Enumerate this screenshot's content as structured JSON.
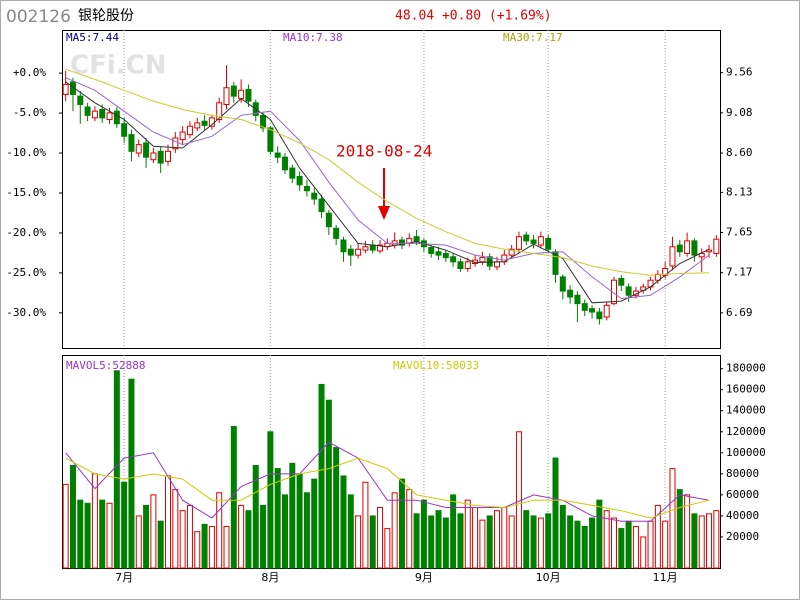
{
  "chart_data": [
    {
      "type": "candlestick",
      "code": "002126",
      "title": "银轮股份",
      "quote": "48.04 +0.80 (+1.69%)",
      "watermark": "CFi.CN",
      "annotation": "2018-08-24",
      "up_color": "#e00000",
      "down_color": "#008000",
      "xlim": [
        -0.5,
        89.5
      ],
      "ylim": [
        6.27,
        10.07
      ],
      "yticks": [
        9.56,
        9.08,
        {
          "value": 8.6,
          "label": "8.60"
        },
        8.13,
        7.65,
        7.17,
        6.69
      ],
      "y2lim": [
        -34.4,
        5.4
      ],
      "y2ticks": [
        {
          "value": 0,
          "label": "+0.0%"
        },
        {
          "value": -5,
          "label": "-5.0%"
        },
        {
          "value": -10,
          "label": "-10.0%"
        },
        {
          "value": -15,
          "label": "-15.0%"
        },
        {
          "value": -20,
          "label": "-20.0%"
        },
        {
          "value": -25,
          "label": "-25.0%"
        },
        {
          "value": -30,
          "label": "-30.0%"
        }
      ],
      "open": [
        9.3,
        9.45,
        9.28,
        9.15,
        9.02,
        9.12,
        9.0,
        9.1,
        8.95,
        8.82,
        8.6,
        8.72,
        8.52,
        8.62,
        8.5,
        8.65,
        8.76,
        8.82,
        8.9,
        8.98,
        8.92,
        9.0,
        9.18,
        9.4,
        9.25,
        9.36,
        9.2,
        9.05,
        8.9,
        8.6,
        8.55,
        8.42,
        8.32,
        8.2,
        8.12,
        8.05,
        7.88,
        7.7,
        7.56,
        7.45,
        7.38,
        7.44,
        7.5,
        7.43,
        7.48,
        7.5,
        7.56,
        7.52,
        7.6,
        7.55,
        7.47,
        7.42,
        7.4,
        7.36,
        7.3,
        7.22,
        7.28,
        7.3,
        7.36,
        7.24,
        7.3,
        7.38,
        7.45,
        7.62,
        7.56,
        7.5,
        7.58,
        7.42,
        7.12,
        6.96,
        6.9,
        6.8,
        6.74,
        6.7,
        6.64,
        6.8,
        7.1,
        7.0,
        6.9,
        6.96,
        7.0,
        7.08,
        7.14,
        7.25,
        7.5,
        7.4,
        7.55,
        7.36,
        7.42,
        7.4
      ],
      "high": [
        9.58,
        9.5,
        9.34,
        9.2,
        9.16,
        9.18,
        9.14,
        9.15,
        9.02,
        8.88,
        8.76,
        8.78,
        8.66,
        8.68,
        8.7,
        8.85,
        8.92,
        8.98,
        9.02,
        9.05,
        9.06,
        9.26,
        9.65,
        9.45,
        9.48,
        9.42,
        9.24,
        9.08,
        8.92,
        8.68,
        8.6,
        8.46,
        8.38,
        8.28,
        8.18,
        8.1,
        7.92,
        7.74,
        7.6,
        7.5,
        7.52,
        7.55,
        7.56,
        7.56,
        7.58,
        7.65,
        7.6,
        7.64,
        7.68,
        7.58,
        7.5,
        7.48,
        7.44,
        7.4,
        7.34,
        7.35,
        7.38,
        7.42,
        7.4,
        7.36,
        7.44,
        7.5,
        7.66,
        7.66,
        7.62,
        7.66,
        7.62,
        7.45,
        7.15,
        7.02,
        6.95,
        6.85,
        6.78,
        6.75,
        6.82,
        7.12,
        7.14,
        7.04,
        7.0,
        7.04,
        7.12,
        7.2,
        7.3,
        7.6,
        7.56,
        7.65,
        7.58,
        7.46,
        7.5,
        7.62
      ],
      "low": [
        9.22,
        9.1,
        8.95,
        8.98,
        8.98,
        8.96,
        8.95,
        8.9,
        8.72,
        8.5,
        8.55,
        8.42,
        8.48,
        8.36,
        8.45,
        8.6,
        8.7,
        8.78,
        8.86,
        8.88,
        8.88,
        8.96,
        9.12,
        9.2,
        9.2,
        9.15,
        8.98,
        8.85,
        8.58,
        8.48,
        8.35,
        8.24,
        8.15,
        8.08,
        7.98,
        7.82,
        7.62,
        7.5,
        7.3,
        7.25,
        7.34,
        7.4,
        7.4,
        7.4,
        7.44,
        7.46,
        7.45,
        7.48,
        7.5,
        7.42,
        7.35,
        7.32,
        7.3,
        7.24,
        7.18,
        7.18,
        7.24,
        7.26,
        7.2,
        7.2,
        7.26,
        7.34,
        7.4,
        7.5,
        7.46,
        7.46,
        7.4,
        7.05,
        6.85,
        6.8,
        6.58,
        6.65,
        6.62,
        6.55,
        6.6,
        6.78,
        6.95,
        6.82,
        6.86,
        6.92,
        6.96,
        7.04,
        7.1,
        7.2,
        7.36,
        7.36,
        7.3,
        7.18,
        7.35,
        7.36
      ],
      "close": [
        9.42,
        9.3,
        9.18,
        9.05,
        9.1,
        9.02,
        9.08,
        8.95,
        8.8,
        8.62,
        8.7,
        8.55,
        8.6,
        8.48,
        8.62,
        8.78,
        8.85,
        8.92,
        8.96,
        8.93,
        9.02,
        9.2,
        9.38,
        9.28,
        9.35,
        9.22,
        9.05,
        8.9,
        8.62,
        8.55,
        8.4,
        8.3,
        8.22,
        8.15,
        8.05,
        7.9,
        7.72,
        7.58,
        7.42,
        7.38,
        7.45,
        7.48,
        7.44,
        7.5,
        7.52,
        7.55,
        7.5,
        7.58,
        7.54,
        7.48,
        7.4,
        7.38,
        7.35,
        7.3,
        7.22,
        7.3,
        7.32,
        7.35,
        7.25,
        7.3,
        7.38,
        7.45,
        7.6,
        7.55,
        7.52,
        7.6,
        7.45,
        7.15,
        6.95,
        6.88,
        6.8,
        6.72,
        6.7,
        6.62,
        6.78,
        7.08,
        7.02,
        6.9,
        6.95,
        7.0,
        7.08,
        7.15,
        7.22,
        7.48,
        7.42,
        7.55,
        7.38,
        7.4,
        7.44,
        7.57
      ],
      "lines": [
        {
          "name": "MA5:7.44",
          "color": "#333333",
          "label_color": "#000080",
          "x": [
            0,
            4,
            8,
            12,
            16,
            20,
            24,
            28,
            32,
            36,
            40,
            44,
            48,
            52,
            56,
            60,
            64,
            68,
            72,
            76,
            80,
            84,
            88
          ],
          "values": [
            9.45,
            9.2,
            9.0,
            8.68,
            8.66,
            8.94,
            9.25,
            9.0,
            8.42,
            7.97,
            7.52,
            7.48,
            7.54,
            7.44,
            7.29,
            7.3,
            7.51,
            7.34,
            6.81,
            6.83,
            7.0,
            7.28,
            7.45
          ]
        },
        {
          "name": "MA10:7.38",
          "color": "#9966cc",
          "label_color": "#9933cc",
          "x": [
            0,
            4,
            8,
            12,
            16,
            20,
            24,
            28,
            32,
            36,
            40,
            44,
            48,
            52,
            56,
            60,
            64,
            68,
            72,
            76,
            80,
            84,
            88
          ],
          "values": [
            9.5,
            9.35,
            9.1,
            8.85,
            8.7,
            8.8,
            9.05,
            9.1,
            8.75,
            8.25,
            7.8,
            7.52,
            7.52,
            7.5,
            7.38,
            7.32,
            7.4,
            7.42,
            7.12,
            6.86,
            6.9,
            7.12,
            7.38
          ]
        },
        {
          "name": "MA30:7.17",
          "color": "#cccc33",
          "label_color": "#b0a000",
          "x": [
            0,
            4,
            8,
            12,
            16,
            20,
            24,
            28,
            32,
            36,
            40,
            44,
            48,
            52,
            56,
            60,
            64,
            68,
            72,
            76,
            80,
            84,
            88
          ],
          "values": [
            9.6,
            9.48,
            9.35,
            9.22,
            9.12,
            9.05,
            9.0,
            8.88,
            8.72,
            8.52,
            8.25,
            8.02,
            7.82,
            7.66,
            7.52,
            7.45,
            7.4,
            7.35,
            7.25,
            7.18,
            7.14,
            7.16,
            7.17
          ]
        }
      ]
    },
    {
      "type": "bar",
      "xlim": [
        -0.5,
        89.5
      ],
      "xticks": [
        {
          "value": 8,
          "label": "7月"
        },
        {
          "value": 28,
          "label": "8月"
        },
        {
          "value": 49,
          "label": "9月"
        },
        {
          "value": 66,
          "label": "10月"
        },
        {
          "value": 82,
          "label": "11月"
        }
      ],
      "ylim": [
        0,
        193000
      ],
      "yticks": [
        20000,
        40000,
        60000,
        80000,
        100000,
        120000,
        140000,
        160000,
        180000
      ],
      "values": [
        70000,
        88000,
        55000,
        52000,
        80000,
        55000,
        52000,
        178000,
        72000,
        170000,
        40000,
        50000,
        60000,
        35000,
        78000,
        65000,
        45000,
        50000,
        25000,
        32000,
        30000,
        62000,
        30000,
        125000,
        50000,
        45000,
        88000,
        50000,
        120000,
        85000,
        60000,
        90000,
        80000,
        62000,
        75000,
        165000,
        150000,
        105000,
        78000,
        60000,
        40000,
        72000,
        40000,
        48000,
        28000,
        62000,
        75000,
        65000,
        42000,
        55000,
        40000,
        45000,
        38000,
        60000,
        42000,
        55000,
        48000,
        36000,
        40000,
        45000,
        48000,
        40000,
        120000,
        45000,
        40000,
        38000,
        42000,
        95000,
        50000,
        40000,
        35000,
        30000,
        38000,
        55000,
        45000,
        38000,
        28000,
        35000,
        30000,
        20000,
        35000,
        50000,
        35000,
        85000,
        65000,
        60000,
        42000,
        40000,
        42000,
        45000
      ],
      "lines": [
        {
          "name": "MAVOL5:52888",
          "color": "#9933cc",
          "x": [
            0,
            4,
            8,
            12,
            16,
            20,
            24,
            28,
            32,
            36,
            40,
            44,
            48,
            52,
            56,
            60,
            64,
            68,
            72,
            76,
            80,
            84,
            88
          ],
          "values": [
            100000,
            66000,
            95000,
            100000,
            55000,
            38000,
            68000,
            80000,
            80000,
            110000,
            95000,
            55000,
            55000,
            48000,
            48000,
            48000,
            60000,
            55000,
            40000,
            35000,
            35000,
            60000,
            55000
          ]
        },
        {
          "name": "MAVOL10:58033",
          "color": "#cccc00",
          "x": [
            0,
            4,
            8,
            12,
            16,
            20,
            24,
            28,
            32,
            36,
            40,
            44,
            48,
            52,
            56,
            60,
            64,
            68,
            72,
            76,
            80,
            84,
            88
          ],
          "values": [
            95000,
            80000,
            75000,
            80000,
            75000,
            55000,
            55000,
            70000,
            80000,
            85000,
            95000,
            85000,
            60000,
            55000,
            50000,
            48000,
            55000,
            55000,
            50000,
            45000,
            38000,
            48000,
            55000
          ]
        }
      ]
    }
  ]
}
